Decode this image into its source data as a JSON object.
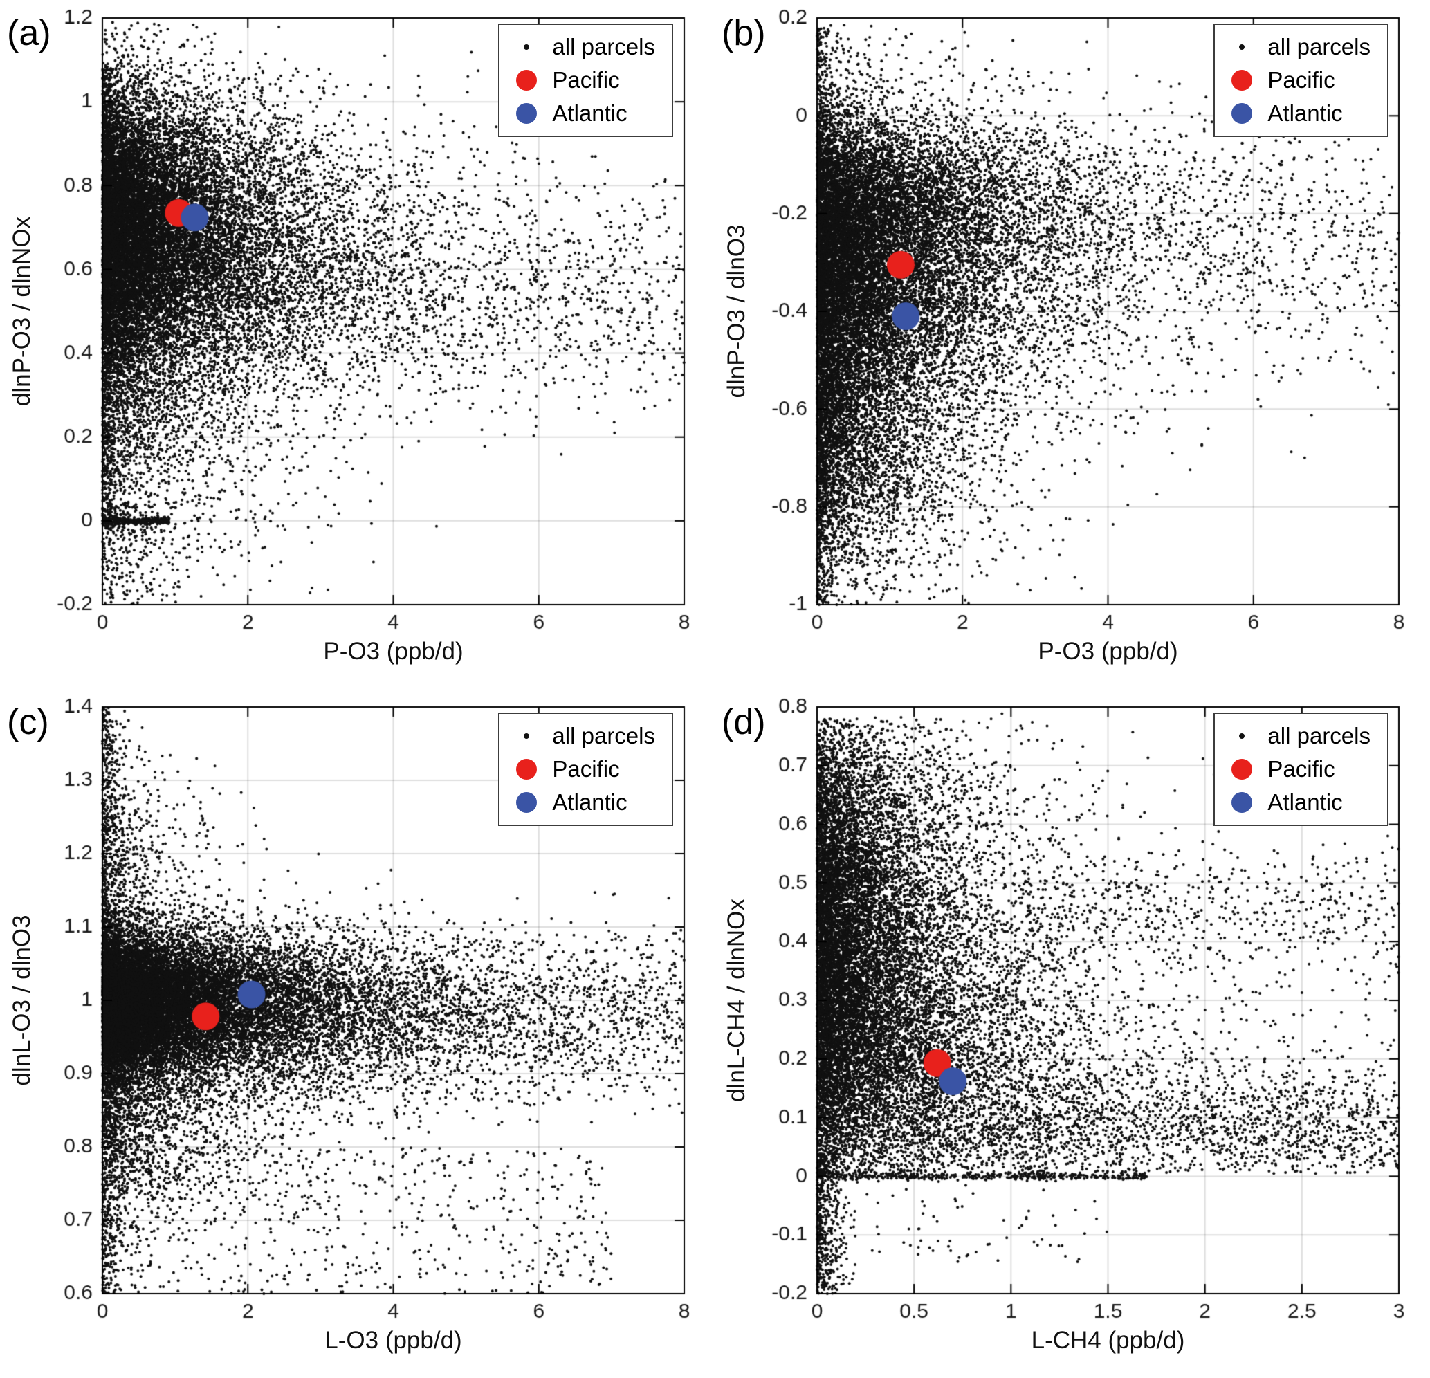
{
  "style": {
    "background": "#ffffff",
    "grid_color": "rgba(0,0,0,0.13)",
    "axis_color": "#000000",
    "tick_label_color": "#1a1a1a",
    "dot_color": "#111111",
    "dot_radius": 2,
    "highlight_radius": 20,
    "tick_length": 14,
    "margins": {
      "l": 148,
      "t": 26,
      "r": 44,
      "b": 122
    }
  },
  "legend": {
    "entries": [
      {
        "label": "all parcels",
        "marker": "dot",
        "color": "#111111",
        "icon": "scatter-dot-icon"
      },
      {
        "label": "Pacific",
        "marker": "circle",
        "color": "#e8211c",
        "icon": "pacific-marker-icon"
      },
      {
        "label": "Atlantic",
        "marker": "circle",
        "color": "#3a54a5",
        "icon": "atlantic-marker-icon"
      }
    ]
  },
  "chart_data": [
    {
      "type": "scatter",
      "panel_label": "(a)",
      "xlabel": "P-O3 (ppb/d)",
      "ylabel": "dlnP-O3 / dlnNOx",
      "xlim": [
        0,
        8
      ],
      "ylim": [
        -0.2,
        1.2
      ],
      "grid": true,
      "legend_position": "top-right",
      "xticks": {
        "values": [
          0,
          2,
          4,
          6,
          8
        ],
        "labels": [
          "0",
          "2",
          "4",
          "6",
          "8"
        ]
      },
      "yticks": {
        "values": [
          -0.2,
          0,
          0.2,
          0.4,
          0.6,
          0.8,
          1,
          1.2
        ],
        "labels": [
          "-0.2",
          "0",
          "0.2",
          "0.4",
          "0.6",
          "0.8",
          "1",
          "1.2"
        ]
      },
      "highlights": [
        {
          "name": "Pacific",
          "x": 1.05,
          "y": 0.735,
          "color": "#e8211c"
        },
        {
          "name": "Atlantic",
          "x": 1.27,
          "y": 0.724,
          "color": "#3a54a5"
        }
      ],
      "cloud": {
        "seed": 11,
        "clusters": [
          {
            "n": 13000,
            "x": {
              "dist": "exp",
              "scale": 0.9
            },
            "y": {
              "dist": "normal",
              "mu": 0.72,
              "sigma": 0.16
            },
            "yclip": [
              -0.2,
              1.19
            ]
          },
          {
            "n": 4500,
            "x": {
              "dist": "exp",
              "scale": 1.8
            },
            "y": {
              "dist": "normal",
              "mu": 0.58,
              "sigma": 0.14
            }
          },
          {
            "n": 2200,
            "x": {
              "dist": "exp",
              "scale": 0.9
            },
            "y": {
              "dist": "normal",
              "mu": 0.3,
              "sigma": 0.18
            }
          },
          {
            "n": 900,
            "x": {
              "dist": "uniform",
              "a": 1.5,
              "b": 8
            },
            "y": {
              "dist": "normal",
              "mu": 0.52,
              "sigma": 0.13
            }
          },
          {
            "n": 700,
            "x": {
              "dist": "exp",
              "scale": 0.08
            },
            "y": {
              "dist": "uniform",
              "a": -0.02,
              "b": 1.08
            }
          },
          {
            "n": 350,
            "x": {
              "dist": "uniform",
              "a": 0,
              "b": 0.92
            },
            "y": {
              "dist": "normal",
              "mu": 0.0,
              "sigma": 0.004
            }
          },
          {
            "n": 260,
            "x": {
              "dist": "exp",
              "scale": 0.6
            },
            "y": {
              "dist": "uniform",
              "a": -0.2,
              "b": 0.05
            }
          }
        ]
      }
    },
    {
      "type": "scatter",
      "panel_label": "(b)",
      "xlabel": "P-O3 (ppb/d)",
      "ylabel": "dlnP-O3 / dlnO3",
      "xlim": [
        0,
        8
      ],
      "ylim": [
        -1,
        0.2
      ],
      "grid": true,
      "legend_position": "top-right",
      "xticks": {
        "values": [
          0,
          2,
          4,
          6,
          8
        ],
        "labels": [
          "0",
          "2",
          "4",
          "6",
          "8"
        ]
      },
      "yticks": {
        "values": [
          -1,
          -0.8,
          -0.6,
          -0.4,
          -0.2,
          0,
          0.2
        ],
        "labels": [
          "-1",
          "-0.8",
          "-0.6",
          "-0.4",
          "-0.2",
          "0",
          "0.2"
        ]
      },
      "highlights": [
        {
          "name": "Pacific",
          "x": 1.15,
          "y": -0.305,
          "color": "#e8211c"
        },
        {
          "name": "Atlantic",
          "x": 1.22,
          "y": -0.41,
          "color": "#3a54a5"
        }
      ],
      "cloud": {
        "seed": 22,
        "clusters": [
          {
            "n": 13000,
            "x": {
              "dist": "exp",
              "scale": 1.0
            },
            "y": {
              "dist": "normal",
              "mu": -0.33,
              "sigma": 0.17
            },
            "yclip": [
              -1,
              0.19
            ]
          },
          {
            "n": 3800,
            "x": {
              "dist": "exp",
              "scale": 1.6
            },
            "y": {
              "dist": "normal",
              "mu": -0.17,
              "sigma": 0.08
            }
          },
          {
            "n": 2400,
            "x": {
              "dist": "exp",
              "scale": 0.7
            },
            "y": {
              "dist": "normal",
              "mu": -0.68,
              "sigma": 0.12
            }
          },
          {
            "n": 900,
            "x": {
              "dist": "uniform",
              "a": 1.5,
              "b": 8
            },
            "y": {
              "dist": "normal",
              "mu": -0.28,
              "sigma": 0.13
            }
          },
          {
            "n": 700,
            "x": {
              "dist": "exp",
              "scale": 0.09
            },
            "y": {
              "dist": "uniform",
              "a": -1,
              "b": 0.18
            }
          },
          {
            "n": 300,
            "x": {
              "dist": "exp",
              "scale": 0.8
            },
            "y": {
              "dist": "uniform",
              "a": -1,
              "b": -0.74
            }
          }
        ]
      }
    },
    {
      "type": "scatter",
      "panel_label": "(c)",
      "xlabel": "L-O3 (ppb/d)",
      "ylabel": "dlnL-O3 / dlnO3",
      "xlim": [
        0,
        8
      ],
      "ylim": [
        0.6,
        1.4
      ],
      "grid": true,
      "legend_position": "top-right",
      "xticks": {
        "values": [
          0,
          2,
          4,
          6,
          8
        ],
        "labels": [
          "0",
          "2",
          "4",
          "6",
          "8"
        ]
      },
      "yticks": {
        "values": [
          0.6,
          0.7,
          0.8,
          0.9,
          1,
          1.1,
          1.2,
          1.3,
          1.4
        ],
        "labels": [
          "0.6",
          "0.7",
          "0.8",
          "0.9",
          "1",
          "1.1",
          "1.2",
          "1.3",
          "1.4"
        ]
      },
      "highlights": [
        {
          "name": "Pacific",
          "x": 1.42,
          "y": 0.978,
          "color": "#e8211c"
        },
        {
          "name": "Atlantic",
          "x": 2.05,
          "y": 1.008,
          "color": "#3a54a5"
        }
      ],
      "cloud": {
        "seed": 33,
        "clusters": [
          {
            "n": 13000,
            "x": {
              "dist": "exp",
              "scale": 1.1
            },
            "y": {
              "dist": "normal",
              "mu": 1.0,
              "sigma": 0.045
            }
          },
          {
            "n": 5200,
            "x": {
              "dist": "exp",
              "scale": 2.2
            },
            "y": {
              "dist": "normal",
              "mu": 0.975,
              "sigma": 0.06
            }
          },
          {
            "n": 2200,
            "x": {
              "dist": "exp",
              "scale": 0.9
            },
            "y": {
              "dist": "normal",
              "mu": 0.86,
              "sigma": 0.09
            }
          },
          {
            "n": 1000,
            "x": {
              "dist": "exp",
              "scale": 0.12
            },
            "y": {
              "dist": "uniform",
              "a": 0.6,
              "b": 1.4
            }
          },
          {
            "n": 650,
            "x": {
              "dist": "exp",
              "scale": 0.5
            },
            "y": {
              "dist": "normal",
              "mu": 1.18,
              "sigma": 0.08
            }
          },
          {
            "n": 520,
            "x": {
              "dist": "uniform",
              "a": 0,
              "b": 7
            },
            "y": {
              "dist": "uniform",
              "a": 0.6,
              "b": 0.8
            }
          },
          {
            "n": 1200,
            "x": {
              "dist": "uniform",
              "a": 2,
              "b": 8
            },
            "y": {
              "dist": "normal",
              "mu": 0.98,
              "sigma": 0.055
            }
          }
        ]
      }
    },
    {
      "type": "scatter",
      "panel_label": "(d)",
      "xlabel": "L-CH4 (ppb/d)",
      "ylabel": "dlnL-CH4 / dlnNOx",
      "xlim": [
        0,
        3
      ],
      "ylim": [
        -0.2,
        0.8
      ],
      "grid": true,
      "legend_position": "top-right",
      "xticks": {
        "values": [
          0,
          0.5,
          1,
          1.5,
          2,
          2.5,
          3
        ],
        "labels": [
          "0",
          "0.5",
          "1",
          "1.5",
          "2",
          "2.5",
          "3"
        ]
      },
      "yticks": {
        "values": [
          -0.2,
          -0.1,
          0,
          0.1,
          0.2,
          0.3,
          0.4,
          0.5,
          0.6,
          0.7,
          0.8
        ],
        "labels": [
          "-0.2",
          "-0.1",
          "0",
          "0.1",
          "0.2",
          "0.3",
          "0.4",
          "0.5",
          "0.6",
          "0.7",
          "0.8"
        ]
      },
      "highlights": [
        {
          "name": "Pacific",
          "x": 0.62,
          "y": 0.193,
          "color": "#e8211c"
        },
        {
          "name": "Atlantic",
          "x": 0.7,
          "y": 0.162,
          "color": "#3a54a5"
        }
      ],
      "cloud": {
        "seed": 44,
        "clusters": [
          {
            "n": 9000,
            "x": {
              "dist": "exp",
              "scale": 0.28
            },
            "y": {
              "dist": "normal",
              "mu": 0.45,
              "sigma": 0.16
            },
            "yclip": [
              0.004,
              0.78
            ]
          },
          {
            "n": 6500,
            "x": {
              "dist": "exp",
              "scale": 0.5
            },
            "y": {
              "dist": "normal",
              "mu": 0.2,
              "sigma": 0.12
            },
            "yclip": [
              0.004,
              0.8
            ]
          },
          {
            "n": 1800,
            "x": {
              "dist": "uniform",
              "a": 0.5,
              "b": 3
            },
            "y": {
              "dist": "normal",
              "mu": 0.08,
              "sigma": 0.055
            },
            "yclip": [
              0.004,
              0.8
            ]
          },
          {
            "n": 600,
            "x": {
              "dist": "uniform",
              "a": 1,
              "b": 3
            },
            "y": {
              "dist": "normal",
              "mu": 0.45,
              "sigma": 0.06
            }
          },
          {
            "n": 420,
            "x": {
              "dist": "uniform",
              "a": 0,
              "b": 1.7
            },
            "y": {
              "dist": "normal",
              "mu": 0.0,
              "sigma": 0.003
            }
          },
          {
            "n": 480,
            "x": {
              "dist": "exp",
              "scale": 0.06
            },
            "y": {
              "dist": "uniform",
              "a": -0.2,
              "b": 0.04
            },
            "xclip": [
              0,
              0.2
            ]
          },
          {
            "n": 320,
            "x": {
              "dist": "exp",
              "scale": 0.4
            },
            "y": {
              "dist": "normal",
              "mu": 0.66,
              "sigma": 0.06
            },
            "yclip": [
              0.3,
              0.79
            ]
          },
          {
            "n": 80,
            "x": {
              "dist": "uniform",
              "a": 0,
              "b": 1.5
            },
            "y": {
              "dist": "uniform",
              "a": -0.15,
              "b": -0.01
            }
          }
        ]
      }
    }
  ]
}
